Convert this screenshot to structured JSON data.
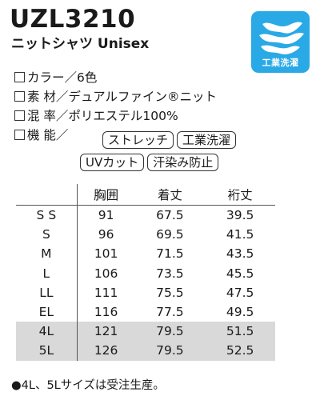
{
  "header": {
    "product_code": "UZL3210",
    "subtitle": "ニットシャツ Unisex"
  },
  "badge": {
    "label": "工業洗濯",
    "color": "#29a9e6",
    "icon": "wave-icon"
  },
  "specs": {
    "color_line": "カラー／6色",
    "material_line": "素 材／デュアルファイン®ニット",
    "blend_line": "混 率／ポリエステル100%",
    "function_prefix": "機 能／",
    "tags": [
      "ストレッチ",
      "工業洗濯",
      "UVカット",
      "汗染み防止"
    ]
  },
  "size_table": {
    "headers": [
      "",
      "胸囲",
      "着丈",
      "裄丈"
    ],
    "rows": [
      {
        "size": "S S",
        "chest": "91",
        "length": "67.5",
        "sleeve": "39.5",
        "shaded": false
      },
      {
        "size": "S",
        "chest": "96",
        "length": "69.5",
        "sleeve": "41.5",
        "shaded": false
      },
      {
        "size": "M",
        "chest": "101",
        "length": "71.5",
        "sleeve": "43.5",
        "shaded": false
      },
      {
        "size": "L",
        "chest": "106",
        "length": "73.5",
        "sleeve": "45.5",
        "shaded": false
      },
      {
        "size": "LL",
        "chest": "111",
        "length": "75.5",
        "sleeve": "47.5",
        "shaded": false
      },
      {
        "size": "EL",
        "chest": "116",
        "length": "77.5",
        "sleeve": "49.5",
        "shaded": false
      },
      {
        "size": "4L",
        "chest": "121",
        "length": "79.5",
        "sleeve": "51.5",
        "shaded": true
      },
      {
        "size": "5L",
        "chest": "126",
        "length": "79.5",
        "sleeve": "52.5",
        "shaded": true
      }
    ]
  },
  "footnote": "●4L、5Lサイズは受注生産。"
}
